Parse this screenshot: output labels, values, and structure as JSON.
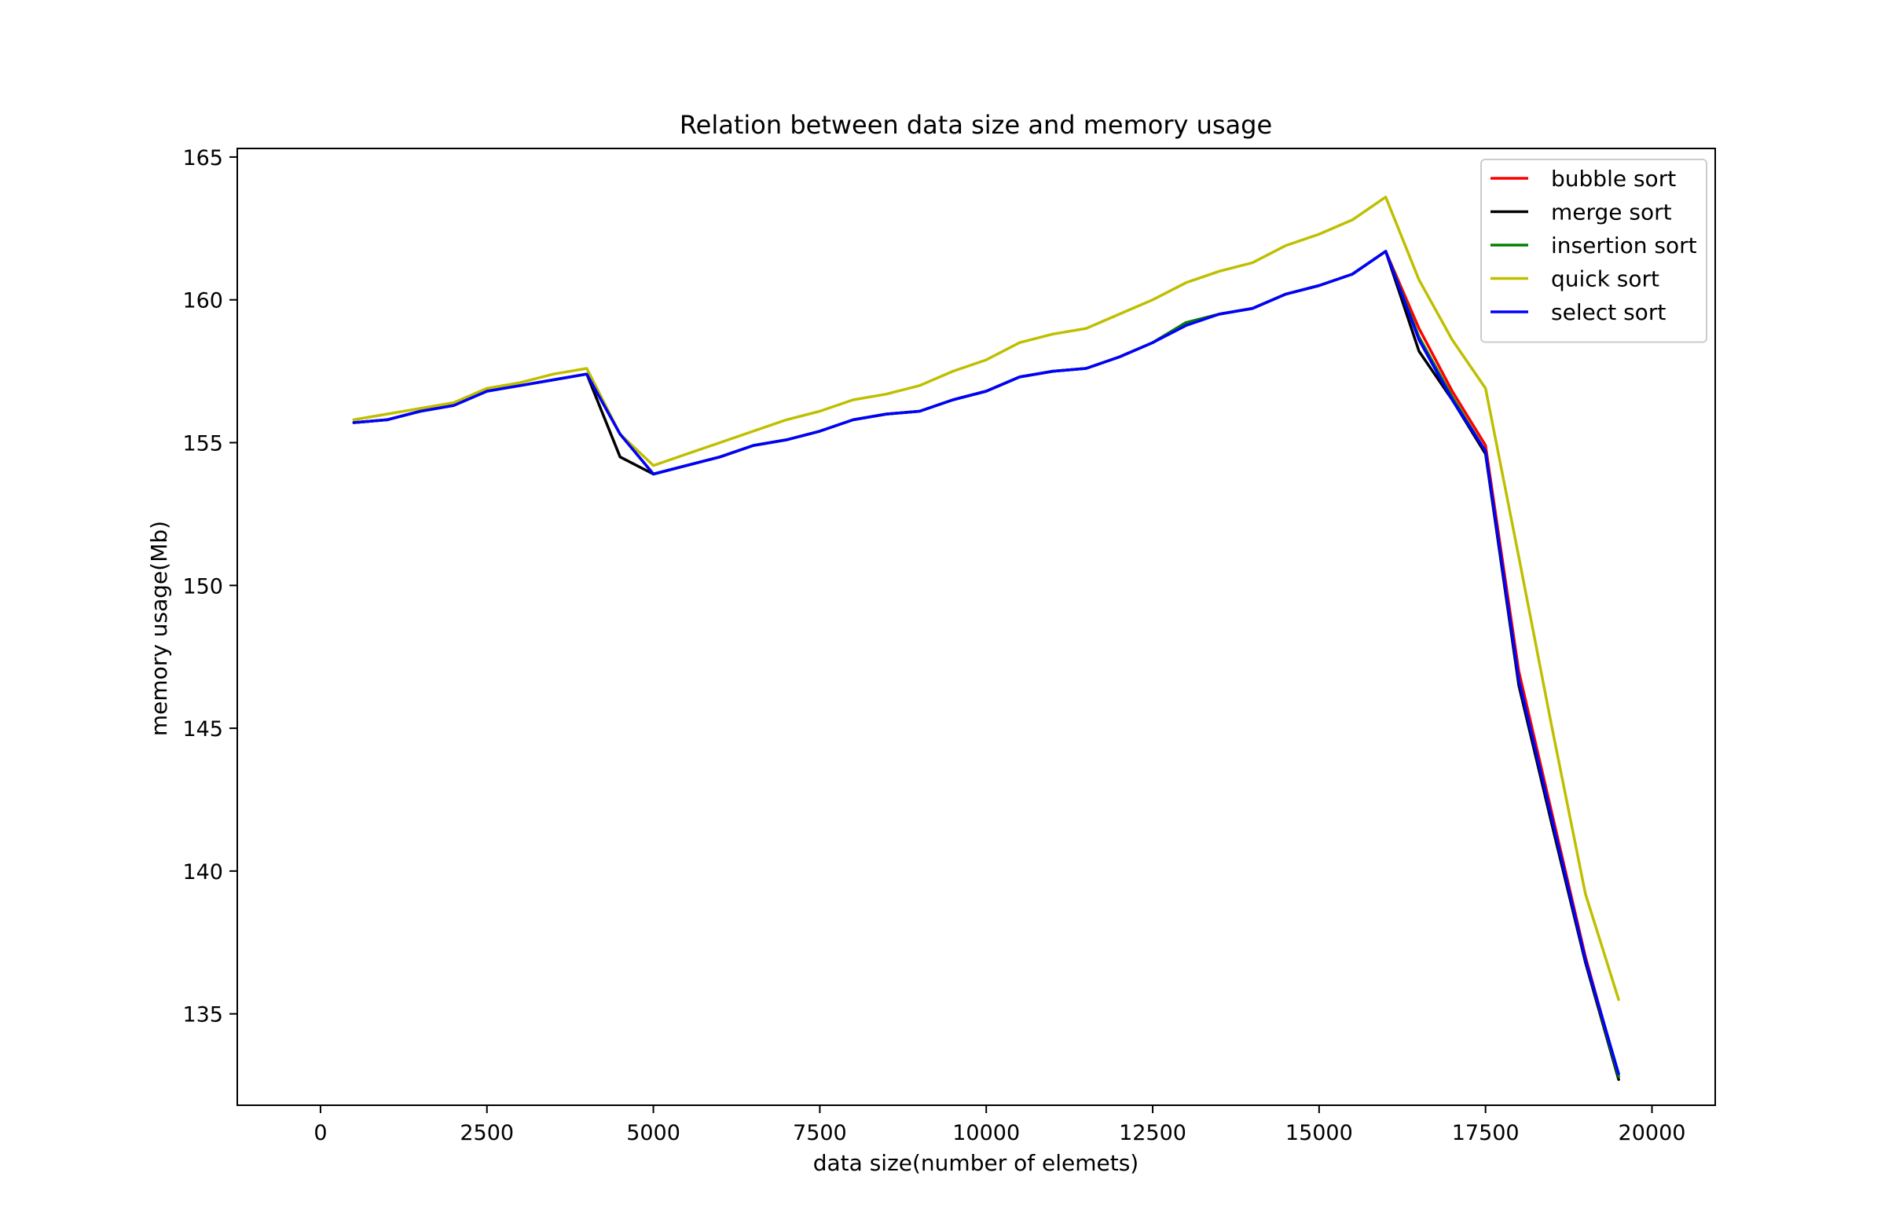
{
  "chart_data": {
    "type": "line",
    "title": "Relation between data size and memory usage",
    "xlabel": "data size(number of elemets)",
    "ylabel": "memory usage(Mb)",
    "xlim": [
      -1250,
      20950
    ],
    "ylim": [
      131.8,
      165.3
    ],
    "xticks": [
      0,
      2500,
      5000,
      7500,
      10000,
      12500,
      15000,
      17500,
      20000
    ],
    "yticks": [
      135,
      140,
      145,
      150,
      155,
      160,
      165
    ],
    "grid": false,
    "legend_position": "top-right",
    "x": [
      500,
      1000,
      1500,
      2000,
      2500,
      3000,
      3500,
      4000,
      4500,
      5000,
      5500,
      6000,
      6500,
      7000,
      7500,
      8000,
      8500,
      9000,
      9500,
      10000,
      10500,
      11000,
      11500,
      12000,
      12500,
      13000,
      13500,
      14000,
      14500,
      15000,
      15500,
      16000,
      16500,
      17000,
      17500,
      18000,
      18500,
      19000,
      19500
    ],
    "series": [
      {
        "name": "bubble sort",
        "color": "#ff0000",
        "values": [
          155.7,
          155.8,
          156.1,
          156.3,
          156.8,
          157.0,
          157.2,
          157.4,
          155.3,
          153.9,
          154.2,
          154.5,
          154.9,
          155.1,
          155.4,
          155.8,
          156.0,
          156.1,
          156.5,
          156.8,
          157.3,
          157.5,
          157.6,
          158.0,
          158.5,
          159.2,
          159.5,
          159.7,
          160.2,
          160.5,
          160.9,
          161.7,
          159.0,
          156.8,
          154.9,
          147.0,
          142.0,
          137.0,
          132.8
        ]
      },
      {
        "name": "merge sort",
        "color": "#000000",
        "values": [
          155.7,
          155.8,
          156.1,
          156.3,
          156.8,
          157.0,
          157.2,
          157.4,
          154.5,
          153.9,
          154.2,
          154.5,
          154.9,
          155.1,
          155.4,
          155.8,
          156.0,
          156.1,
          156.5,
          156.8,
          157.3,
          157.5,
          157.6,
          158.0,
          158.5,
          159.2,
          159.5,
          159.7,
          160.2,
          160.5,
          160.9,
          161.7,
          158.2,
          156.5,
          154.6,
          146.5,
          141.6,
          136.8,
          132.7
        ]
      },
      {
        "name": "insertion sort",
        "color": "#008000",
        "values": [
          155.7,
          155.8,
          156.1,
          156.3,
          156.8,
          157.0,
          157.2,
          157.4,
          155.3,
          153.9,
          154.2,
          154.5,
          154.9,
          155.1,
          155.4,
          155.8,
          156.0,
          156.1,
          156.5,
          156.8,
          157.3,
          157.5,
          157.6,
          158.0,
          158.5,
          159.2,
          159.5,
          159.7,
          160.2,
          160.5,
          160.9,
          161.7,
          158.7,
          156.6,
          154.7,
          146.7,
          141.8,
          136.9,
          132.8
        ]
      },
      {
        "name": "quick sort",
        "color": "#bfbf00",
        "values": [
          155.8,
          156.0,
          156.2,
          156.4,
          156.9,
          157.1,
          157.4,
          157.6,
          155.3,
          154.2,
          154.6,
          155.0,
          155.4,
          155.8,
          156.1,
          156.5,
          156.7,
          157.0,
          157.5,
          157.9,
          158.5,
          158.8,
          159.0,
          159.5,
          160.0,
          160.6,
          161.0,
          161.3,
          161.9,
          162.3,
          162.8,
          163.6,
          160.7,
          158.6,
          156.9,
          151.0,
          145.0,
          139.2,
          135.5
        ]
      },
      {
        "name": "select sort",
        "color": "#0000ff",
        "values": [
          155.7,
          155.8,
          156.1,
          156.3,
          156.8,
          157.0,
          157.2,
          157.4,
          155.3,
          153.9,
          154.2,
          154.5,
          154.9,
          155.1,
          155.4,
          155.8,
          156.0,
          156.1,
          156.5,
          156.8,
          157.3,
          157.5,
          157.6,
          158.0,
          158.5,
          159.1,
          159.5,
          159.7,
          160.2,
          160.5,
          160.9,
          161.7,
          158.6,
          156.5,
          154.7,
          146.7,
          141.8,
          136.9,
          132.9
        ]
      }
    ]
  }
}
